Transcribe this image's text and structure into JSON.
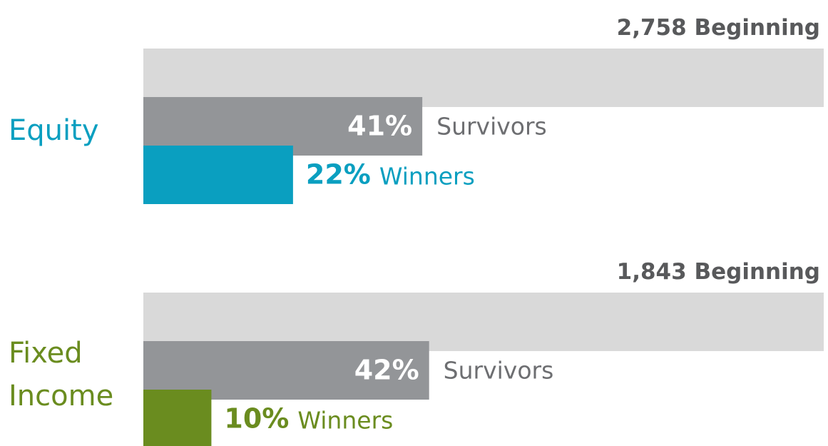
{
  "chart_data": {
    "type": "bar",
    "orientation": "horizontal",
    "categories": [
      "Equity",
      "Fixed Income"
    ],
    "category_colors": [
      "#0a9fc0",
      "#6a8c1f"
    ],
    "xlim": [
      0,
      100
    ],
    "series": [
      {
        "name": "Beginning",
        "color": "#d9d9d9",
        "values": [
          2758,
          1843
        ],
        "value_labels": [
          "2,758",
          "1,843"
        ]
      },
      {
        "name": "Survivors",
        "color": "#939598",
        "values": [
          41,
          42
        ],
        "value_labels": [
          "41%",
          "42%"
        ]
      },
      {
        "name": "Winners",
        "values": [
          22,
          10
        ],
        "value_labels": [
          "22%",
          "10%"
        ]
      }
    ]
  }
}
